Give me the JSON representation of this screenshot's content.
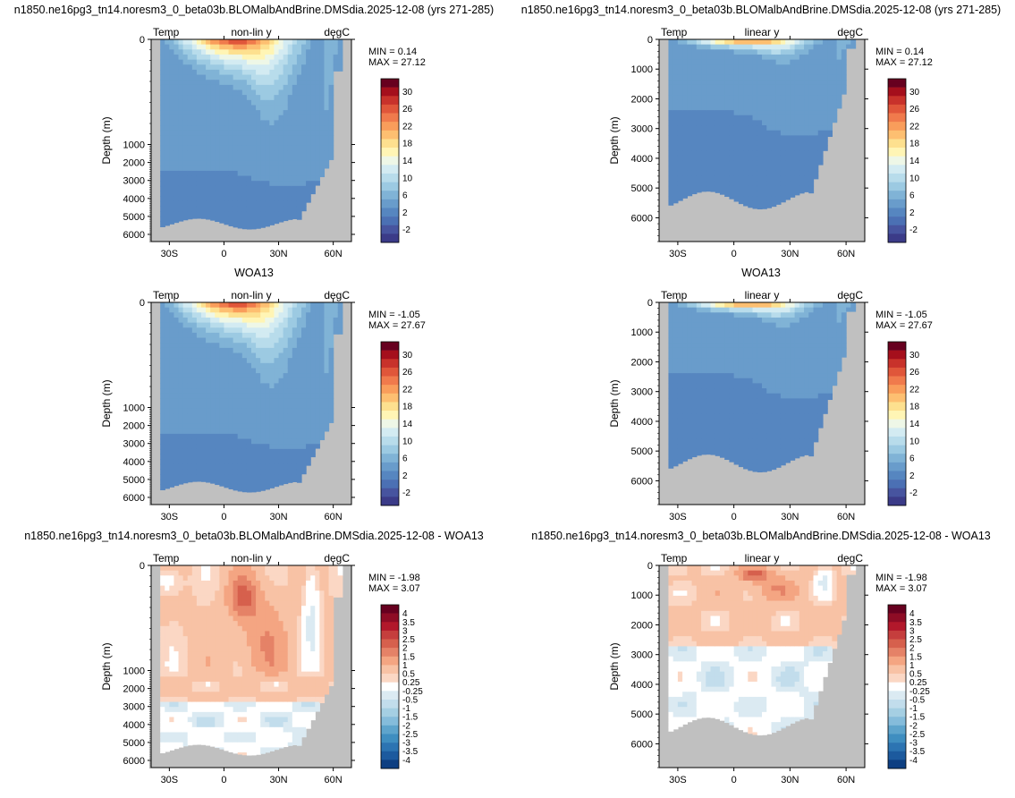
{
  "chart_data": [
    {
      "type": "heatmap",
      "title": "n1850.ne16pg3_tn14.noresm3_0_beta03b.BLOMalbAndBrine.DMSdia.2025-12-08 (yrs 271-285)",
      "left_label": "Temp",
      "center_label": "non-lin y",
      "right_label": "degC",
      "ylabel": "Depth (m)",
      "y_ticks": [
        "0",
        "1000",
        "2000",
        "3000",
        "4000",
        "5000",
        "6000"
      ],
      "x_ticks": [
        "30S",
        "0",
        "30N",
        "60N"
      ],
      "min_text": "MIN =  0.14",
      "max_text": "MAX = 27.12",
      "colorbar_labels": [
        "30",
        "26",
        "22",
        "18",
        "14",
        "10",
        "6",
        "2",
        "-2"
      ],
      "colorbar_colors": [
        "#67001f",
        "#a50f1c",
        "#c8322b",
        "#e0563a",
        "#f07a4c",
        "#f99d5b",
        "#fdbf71",
        "#fde08f",
        "#fff5b5",
        "#eef7e7",
        "#d3ebf2",
        "#b8dceb",
        "#9ccae2",
        "#80b3d6",
        "#699ccb",
        "#5686c0",
        "#4b70b4",
        "#47549f",
        "#3b3b88"
      ],
      "y_scale": "nonlinear",
      "xlim": [
        "40S",
        "70N"
      ]
    },
    {
      "type": "heatmap",
      "title": "n1850.ne16pg3_tn14.noresm3_0_beta03b.BLOMalbAndBrine.DMSdia.2025-12-08 (yrs 271-285)",
      "left_label": "Temp",
      "center_label": "linear y",
      "right_label": "degC",
      "ylabel": "Depth (m)",
      "y_ticks": [
        "0",
        "1000",
        "2000",
        "3000",
        "4000",
        "5000",
        "6000"
      ],
      "x_ticks": [
        "30S",
        "0",
        "30N",
        "60N"
      ],
      "min_text": "MIN =  0.14",
      "max_text": "MAX = 27.12",
      "colorbar_labels": [
        "30",
        "26",
        "22",
        "18",
        "14",
        "10",
        "6",
        "2",
        "-2"
      ],
      "colorbar_colors": [
        "#67001f",
        "#a50f1c",
        "#c8322b",
        "#e0563a",
        "#f07a4c",
        "#f99d5b",
        "#fdbf71",
        "#fde08f",
        "#fff5b5",
        "#eef7e7",
        "#d3ebf2",
        "#b8dceb",
        "#9ccae2",
        "#80b3d6",
        "#699ccb",
        "#5686c0",
        "#4b70b4",
        "#47549f",
        "#3b3b88"
      ],
      "y_scale": "linear",
      "ylim": [
        0,
        6800
      ]
    },
    {
      "type": "heatmap",
      "title": "WOA13",
      "left_label": "Temp",
      "center_label": "non-lin y",
      "right_label": "degC",
      "ylabel": "Depth (m)",
      "y_ticks": [
        "0",
        "1000",
        "2000",
        "3000",
        "4000",
        "5000",
        "6000"
      ],
      "x_ticks": [
        "30S",
        "0",
        "30N",
        "60N"
      ],
      "min_text": "MIN = -1.05",
      "max_text": "MAX = 27.67",
      "colorbar_labels": [
        "30",
        "26",
        "22",
        "18",
        "14",
        "10",
        "6",
        "2",
        "-2"
      ],
      "colorbar_colors": [
        "#67001f",
        "#a50f1c",
        "#c8322b",
        "#e0563a",
        "#f07a4c",
        "#f99d5b",
        "#fdbf71",
        "#fde08f",
        "#fff5b5",
        "#eef7e7",
        "#d3ebf2",
        "#b8dceb",
        "#9ccae2",
        "#80b3d6",
        "#699ccb",
        "#5686c0",
        "#4b70b4",
        "#47549f",
        "#3b3b88"
      ],
      "y_scale": "nonlinear"
    },
    {
      "type": "heatmap",
      "title": "WOA13",
      "left_label": "Temp",
      "center_label": "linear y",
      "right_label": "degC",
      "ylabel": "Depth (m)",
      "y_ticks": [
        "0",
        "1000",
        "2000",
        "3000",
        "4000",
        "5000",
        "6000"
      ],
      "x_ticks": [
        "30S",
        "0",
        "30N",
        "60N"
      ],
      "min_text": "MIN = -1.05",
      "max_text": "MAX = 27.67",
      "colorbar_labels": [
        "30",
        "26",
        "22",
        "18",
        "14",
        "10",
        "6",
        "2",
        "-2"
      ],
      "colorbar_colors": [
        "#67001f",
        "#a50f1c",
        "#c8322b",
        "#e0563a",
        "#f07a4c",
        "#f99d5b",
        "#fdbf71",
        "#fde08f",
        "#fff5b5",
        "#eef7e7",
        "#d3ebf2",
        "#b8dceb",
        "#9ccae2",
        "#80b3d6",
        "#699ccb",
        "#5686c0",
        "#4b70b4",
        "#47549f",
        "#3b3b88"
      ],
      "y_scale": "linear",
      "ylim": [
        0,
        6800
      ]
    },
    {
      "type": "heatmap",
      "title": "n1850.ne16pg3_tn14.noresm3_0_beta03b.BLOMalbAndBrine.DMSdia.2025-12-08 - WOA13",
      "left_label": "Temp",
      "center_label": "non-lin y",
      "right_label": "degC",
      "ylabel": "Depth (m)",
      "y_ticks": [
        "0",
        "1000",
        "2000",
        "3000",
        "4000",
        "5000",
        "6000"
      ],
      "x_ticks": [
        "30S",
        "0",
        "30N",
        "60N"
      ],
      "min_text": "MIN = -1.98",
      "max_text": "MAX =  3.07",
      "colorbar_labels": [
        "4",
        "3.5",
        "3",
        "2.5",
        "2",
        "1.5",
        "1",
        "0.5",
        "0.25",
        "-0.25",
        "-0.5",
        "-1",
        "-1.5",
        "-2",
        "-2.5",
        "-3",
        "-3.5",
        "-4"
      ],
      "colorbar_colors": [
        "#67001f",
        "#8e0c25",
        "#b2182b",
        "#c53e3d",
        "#d6604d",
        "#e58267",
        "#f4a582",
        "#f8c2a5",
        "#fbd7c4",
        "#ffffff",
        "#dbeaf2",
        "#c2ddec",
        "#a5cfe3",
        "#85bcdb",
        "#5ea4cc",
        "#3f8ec0",
        "#2c74b2",
        "#1c5a9e",
        "#0d3f82"
      ],
      "y_scale": "nonlinear"
    },
    {
      "type": "heatmap",
      "title": "n1850.ne16pg3_tn14.noresm3_0_beta03b.BLOMalbAndBrine.DMSdia.2025-12-08 - WOA13",
      "left_label": "Temp",
      "center_label": "linear y",
      "right_label": "degC",
      "ylabel": "Depth (m)",
      "y_ticks": [
        "0",
        "1000",
        "2000",
        "3000",
        "4000",
        "5000",
        "6000"
      ],
      "x_ticks": [
        "30S",
        "0",
        "30N",
        "60N"
      ],
      "min_text": "MIN = -1.98",
      "max_text": "MAX =  3.07",
      "colorbar_labels": [
        "4",
        "3.5",
        "3",
        "2.5",
        "2",
        "1.5",
        "1",
        "0.5",
        "0.25",
        "-0.25",
        "-0.5",
        "-1",
        "-1.5",
        "-2",
        "-2.5",
        "-3",
        "-3.5",
        "-4"
      ],
      "colorbar_colors": [
        "#67001f",
        "#8e0c25",
        "#b2182b",
        "#c53e3d",
        "#d6604d",
        "#e58267",
        "#f4a582",
        "#f8c2a5",
        "#fbd7c4",
        "#ffffff",
        "#dbeaf2",
        "#c2ddec",
        "#a5cfe3",
        "#85bcdb",
        "#5ea4cc",
        "#3f8ec0",
        "#2c74b2",
        "#1c5a9e",
        "#0d3f82"
      ],
      "y_scale": "linear",
      "ylim": [
        0,
        6800
      ]
    }
  ]
}
